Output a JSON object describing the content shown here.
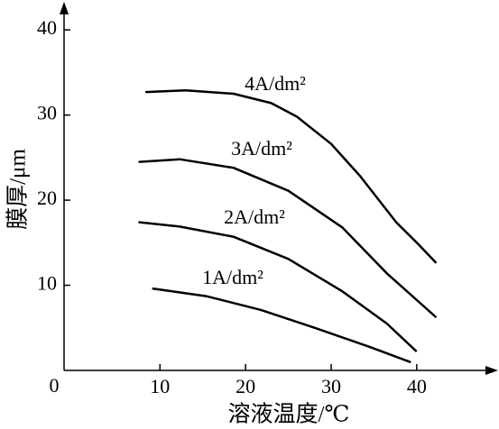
{
  "chart_data": {
    "type": "line",
    "x_label": "溶液温度/℃",
    "y_label": "膜厚/μm",
    "origin_label": "0",
    "xlim": [
      -1.2,
      49.5
    ],
    "ylim": [
      0,
      43.3
    ],
    "xticks": [
      10,
      20,
      30,
      40
    ],
    "yticks": [
      10,
      20,
      30,
      40
    ],
    "series": [
      {
        "name": "4A/dm²",
        "color": "#000000",
        "x": [
          8.4,
          13,
          18.6,
          23,
          26,
          30,
          33.4,
          37.6,
          40,
          42.2
        ],
        "values": [
          32.7,
          32.9,
          32.5,
          31.4,
          29.8,
          26.6,
          22.8,
          17.4,
          15,
          12.7
        ]
      },
      {
        "name": "3A/dm²",
        "color": "#000000",
        "x": [
          7.6,
          12.3,
          18.6,
          25,
          31.3,
          36.5,
          42.2
        ],
        "values": [
          24.5,
          24.8,
          23.8,
          21.1,
          16.8,
          11.4,
          6.3
        ]
      },
      {
        "name": "2A/dm²",
        "color": "#000000",
        "x": [
          7.6,
          12.3,
          18.6,
          25,
          31.3,
          36.5,
          39.9
        ],
        "values": [
          17.4,
          16.9,
          15.7,
          13.1,
          9.3,
          5.5,
          2.3
        ]
      },
      {
        "name": "1A/dm²",
        "color": "#000000",
        "x": [
          9.2,
          15.5,
          21.8,
          28.1,
          34.4,
          39.2
        ],
        "values": [
          9.6,
          8.7,
          7.1,
          5.0,
          2.8,
          1.0
        ]
      }
    ]
  }
}
